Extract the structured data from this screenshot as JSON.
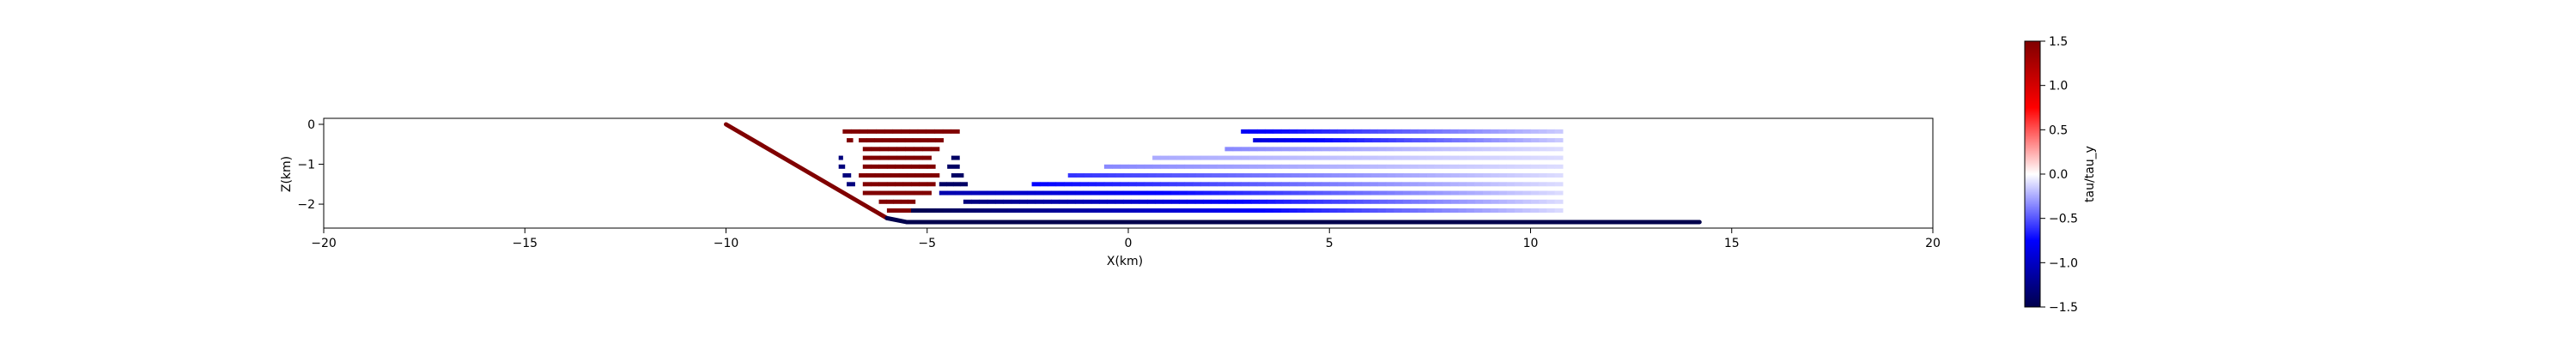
{
  "chart_data": {
    "type": "scatter",
    "xlabel": "X(km)",
    "ylabel": "Z(km)",
    "xlim": [
      -20,
      20
    ],
    "ylim": [
      -2.6,
      0.15
    ],
    "x_ticks": [
      -20,
      -15,
      -10,
      -5,
      0,
      5,
      10,
      15,
      20
    ],
    "x_tick_labels": [
      "−20",
      "−15",
      "−10",
      "−5",
      "0",
      "5",
      "10",
      "15",
      "20"
    ],
    "y_ticks": [
      0,
      -1,
      -2
    ],
    "y_tick_labels": [
      "0",
      "−1",
      "−2"
    ],
    "colorbar": {
      "label": "tau/tau_y",
      "colormap": "seismic",
      "range": [
        -1.5,
        1.5
      ],
      "ticks": [
        1.5,
        1.0,
        0.5,
        0.0,
        -0.5,
        -1.0,
        -1.5
      ],
      "tick_labels": [
        "1.5",
        "1.0",
        "0.5",
        "0.0",
        "−0.5",
        "−1.0",
        "−1.5"
      ]
    },
    "main_fault": {
      "name": "",
      "segments": [
        {
          "x0": -10.0,
          "z0": 0.0,
          "x1": -6.0,
          "z1": -2.35,
          "value": 1.5
        },
        {
          "x0": -6.0,
          "z0": -2.35,
          "x1": -5.5,
          "z1": -2.45,
          "value": -1.5
        },
        {
          "x0": -5.5,
          "z0": -2.45,
          "x1": 14.2,
          "z1": -2.45,
          "value": -1.5
        }
      ]
    },
    "layers": [
      {
        "z": -0.18,
        "x_start": -7.1,
        "x_end": -4.2,
        "value_start": 1.5,
        "value_end": 1.5
      },
      {
        "z": -0.18,
        "x_start": 2.8,
        "x_end": 10.8,
        "value_start": -0.8,
        "value_end": -0.15
      },
      {
        "z": -0.4,
        "x_start": -7.0,
        "x_end": -6.85,
        "value_start": 1.5,
        "value_end": 1.5
      },
      {
        "z": -0.4,
        "x_start": -6.7,
        "x_end": -4.6,
        "value_start": 1.5,
        "value_end": 1.5
      },
      {
        "z": -0.4,
        "x_start": 3.1,
        "x_end": 10.8,
        "value_start": -0.9,
        "value_end": -0.15
      },
      {
        "z": -0.62,
        "x_start": -6.6,
        "x_end": -4.7,
        "value_start": 1.5,
        "value_end": 1.5
      },
      {
        "z": -0.62,
        "x_start": 2.4,
        "x_end": 10.8,
        "value_start": -0.35,
        "value_end": -0.1
      },
      {
        "z": -0.84,
        "x_start": -7.2,
        "x_end": -7.1,
        "value_start": -1.3,
        "value_end": -1.3
      },
      {
        "z": -0.84,
        "x_start": -6.6,
        "x_end": -4.9,
        "value_start": 1.5,
        "value_end": 1.5
      },
      {
        "z": -0.84,
        "x_start": -4.4,
        "x_end": -4.2,
        "value_start": -1.4,
        "value_end": -1.4
      },
      {
        "z": -0.84,
        "x_start": 0.6,
        "x_end": 10.8,
        "value_start": -0.25,
        "value_end": -0.1
      },
      {
        "z": -1.06,
        "x_start": -7.2,
        "x_end": -7.05,
        "value_start": -1.3,
        "value_end": -1.3
      },
      {
        "z": -1.06,
        "x_start": -6.6,
        "x_end": -4.8,
        "value_start": 1.5,
        "value_end": 1.5
      },
      {
        "z": -1.06,
        "x_start": -4.5,
        "x_end": -4.2,
        "value_start": -1.4,
        "value_end": -1.4
      },
      {
        "z": -1.06,
        "x_start": -0.6,
        "x_end": 10.8,
        "value_start": -0.35,
        "value_end": -0.1
      },
      {
        "z": -1.28,
        "x_start": -7.1,
        "x_end": -6.9,
        "value_start": -1.3,
        "value_end": -1.3
      },
      {
        "z": -1.28,
        "x_start": -6.7,
        "x_end": -4.7,
        "value_start": 1.5,
        "value_end": 1.5
      },
      {
        "z": -1.28,
        "x_start": -4.4,
        "x_end": -4.1,
        "value_start": -1.4,
        "value_end": -1.4
      },
      {
        "z": -1.28,
        "x_start": -1.5,
        "x_end": 10.8,
        "value_start": -0.6,
        "value_end": -0.1
      },
      {
        "z": -1.5,
        "x_start": -7.0,
        "x_end": -6.8,
        "value_start": -1.3,
        "value_end": -1.3
      },
      {
        "z": -1.5,
        "x_start": -6.6,
        "x_end": -4.8,
        "value_start": 1.5,
        "value_end": 1.5
      },
      {
        "z": -1.5,
        "x_start": -4.7,
        "x_end": -4.0,
        "value_start": -1.4,
        "value_end": -1.4
      },
      {
        "z": -1.5,
        "x_start": -2.4,
        "x_end": 10.8,
        "value_start": -0.75,
        "value_end": -0.1
      },
      {
        "z": -1.72,
        "x_start": -6.6,
        "x_end": -4.9,
        "value_start": 1.5,
        "value_end": 1.5
      },
      {
        "z": -1.72,
        "x_start": -4.7,
        "x_end": 10.8,
        "value_start": -1.1,
        "value_end": -0.1
      },
      {
        "z": -1.94,
        "x_start": -6.2,
        "x_end": -5.3,
        "value_start": 1.5,
        "value_end": 1.5
      },
      {
        "z": -1.94,
        "x_start": -4.1,
        "x_end": 10.8,
        "value_start": -1.3,
        "value_end": -0.1
      },
      {
        "z": -2.16,
        "x_start": -6.0,
        "x_end": -5.4,
        "value_start": 1.5,
        "value_end": 1.5
      },
      {
        "z": -2.16,
        "x_start": -5.4,
        "x_end": 10.8,
        "value_start": -1.5,
        "value_end": -0.1
      }
    ]
  }
}
